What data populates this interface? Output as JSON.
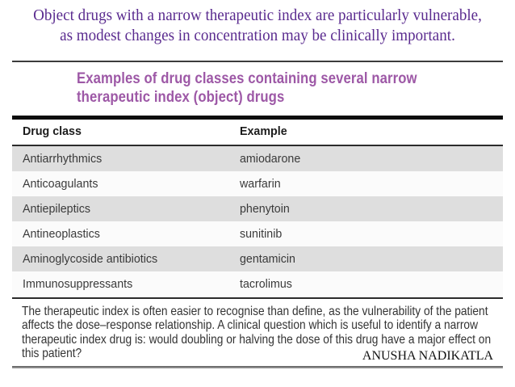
{
  "slide": {
    "title_line1": "Object drugs with a narrow therapeutic index are particularly vulnerable,",
    "title_line2": "as modest changes in concentration may be clinically important.",
    "author": "ANUSHA NADIKATLA"
  },
  "table": {
    "heading": "Examples of drug classes containing several narrow therapeutic index (object) drugs",
    "columns": {
      "col1": "Drug class",
      "col2": "Example"
    },
    "rows": [
      {
        "drug_class": "Antiarrhythmics",
        "example": "amiodarone"
      },
      {
        "drug_class": "Anticoagulants",
        "example": "warfarin"
      },
      {
        "drug_class": "Antiepileptics",
        "example": "phenytoin"
      },
      {
        "drug_class": "Antineoplastics",
        "example": "sunitinib"
      },
      {
        "drug_class": "Aminoglycoside antibiotics",
        "example": "gentamicin"
      },
      {
        "drug_class": "Immunosuppressants",
        "example": "tacrolimus"
      }
    ],
    "footnote": "The therapeutic index is often easier to recognise than define, as the vulnerability of the patient affects the dose–response relationship. A clinical question which is useful to identify a narrow therapeutic index drug is: would doubling or halving the dose of this drug have a major effect on this patient?"
  },
  "colors": {
    "title_purple": "#5a2b8f",
    "heading_purple": "#9d58a6",
    "row_gray": "#dedede",
    "rule_black": "#0d0d0d"
  }
}
